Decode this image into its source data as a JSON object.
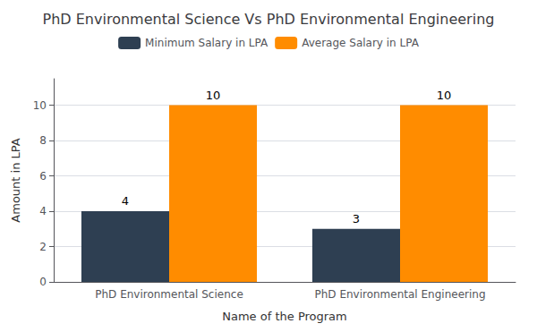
{
  "chart_data": {
    "type": "bar",
    "title": "PhD Environmental Science Vs PhD Environmental Engineering",
    "categories": [
      "PhD Environmental Science",
      "PhD Environmental Engineering"
    ],
    "series": [
      {
        "name": "Minimum Salary in LPA",
        "color": "#2e3f52",
        "values": [
          4,
          3
        ]
      },
      {
        "name": "Average Salary in LPA",
        "color": "#ff8c00",
        "values": [
          10,
          10
        ]
      }
    ],
    "xlabel": "Name of the Program",
    "ylabel": "Amount in LPA",
    "ylim": [
      0,
      11.5
    ],
    "yticks": [
      0,
      2,
      4,
      6,
      8,
      10
    ],
    "grid": true,
    "legend": "top",
    "data_labels": true
  }
}
